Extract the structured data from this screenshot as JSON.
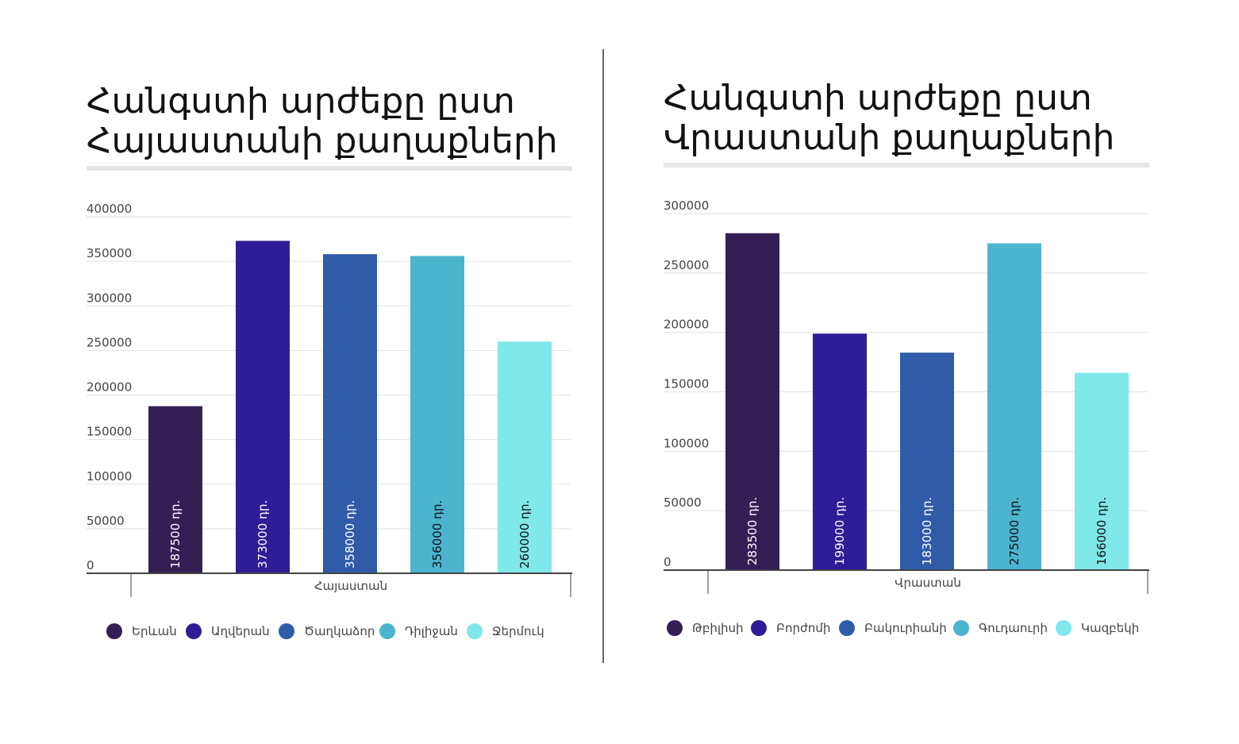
{
  "charts": [
    {
      "title_lines": [
        "Հանգստի արժեքը ըստ",
        "Հայաստանի քաղաքների"
      ],
      "group_label": "Հայաստան",
      "chart_data": {
        "type": "bar",
        "categories": [
          "Երևան",
          "Աղվերան",
          "Ծաղկաձոր",
          "Դիլիջան",
          "Ջերմուկ"
        ],
        "values": [
          187500,
          373000,
          358000,
          356000,
          260000
        ],
        "value_labels": [
          "187500 դր.",
          "373000 դր.",
          "358000 դր.",
          "356000 դր.",
          "260000 դր."
        ],
        "colors": [
          "#341f55",
          "#2e1d96",
          "#2f5ba9",
          "#4bb5cf",
          "#81e8ea"
        ],
        "label_colors": [
          "#ffffff",
          "#ffffff",
          "#ffffff",
          "#111111",
          "#111111"
        ],
        "ylim": [
          0,
          400000
        ],
        "yticks": [
          0,
          50000,
          100000,
          150000,
          200000,
          250000,
          300000,
          350000,
          400000
        ],
        "ytick_labels": [
          "0",
          "50000",
          "100000",
          "150000",
          "200000",
          "250000",
          "300000",
          "350000",
          "400000"
        ],
        "grid": true,
        "legend_position": "bottom"
      }
    },
    {
      "title_lines": [
        "Հանգստի արժեքը ըստ",
        "Վրաստանի քաղաքների"
      ],
      "group_label": "Վրաստան",
      "chart_data": {
        "type": "bar",
        "categories": [
          "Թբիլիսի",
          "Բորժոմի",
          "Բակուրիանի",
          "Գուդաուրի",
          "Կազբեկի"
        ],
        "values": [
          283500,
          199000,
          183000,
          275000,
          166000
        ],
        "value_labels": [
          "283500 դր.",
          "199000 դր.",
          "183000 դր.",
          "275000 դր.",
          "166000 դր."
        ],
        "colors": [
          "#341f55",
          "#2e1d96",
          "#2f5ba9",
          "#4bb5cf",
          "#81e8ea"
        ],
        "label_colors": [
          "#ffffff",
          "#ffffff",
          "#ffffff",
          "#111111",
          "#111111"
        ],
        "ylim": [
          0,
          300000
        ],
        "yticks": [
          0,
          50000,
          100000,
          150000,
          200000,
          250000,
          300000
        ],
        "ytick_labels": [
          "0",
          "50000",
          "100000",
          "150000",
          "200000",
          "250000",
          "300000"
        ],
        "grid": true,
        "legend_position": "bottom"
      }
    }
  ]
}
